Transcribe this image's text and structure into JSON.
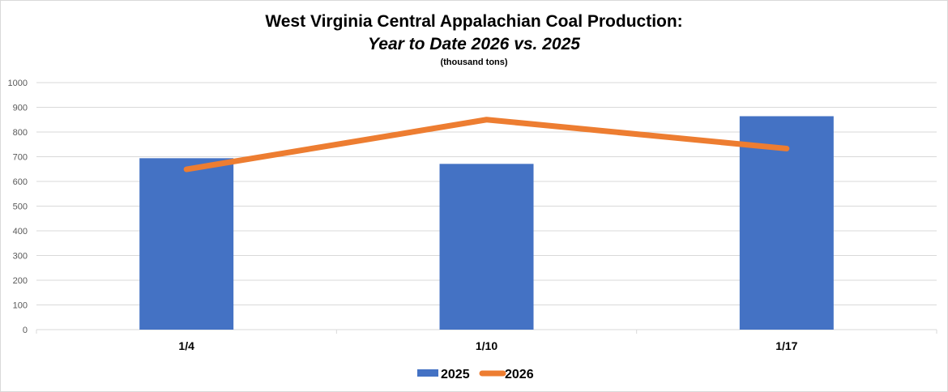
{
  "chart_data": {
    "type": "bar",
    "title": "West Virginia Central Appalachian Coal Production:",
    "subtitle": "Year to Date 2026 vs. 2025",
    "unit_label": "(thousand tons)",
    "categories": [
      "1/4",
      "1/10",
      "1/17"
    ],
    "series": [
      {
        "name": "2025",
        "kind": "bar",
        "color": "#4472C4",
        "values": [
          694,
          671,
          864
        ]
      },
      {
        "name": "2026",
        "kind": "line",
        "color": "#ED7D31",
        "values": [
          649,
          850,
          733
        ]
      }
    ],
    "ylim": [
      0,
      1000
    ],
    "yticks": [
      "0",
      "100",
      "200",
      "300",
      "400",
      "500",
      "600",
      "700",
      "800",
      "900",
      "1000"
    ],
    "grid": true,
    "legend": "bottom"
  }
}
